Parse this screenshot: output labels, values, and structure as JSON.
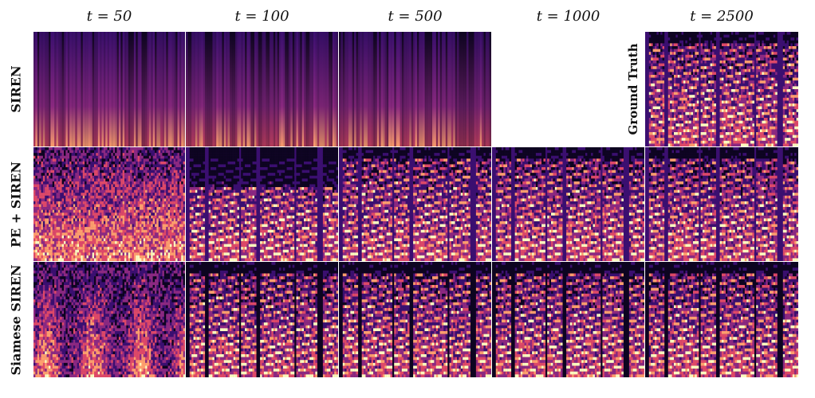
{
  "columns": [
    {
      "label": "t = 50"
    },
    {
      "label": "t = 100"
    },
    {
      "label": "t = 500"
    },
    {
      "label": "t = 1000"
    },
    {
      "label": "t = 2500"
    }
  ],
  "rows": [
    {
      "label": "SIREN"
    },
    {
      "label": "PE + SIREN"
    },
    {
      "label": "Siamese SIREN"
    }
  ],
  "ground_truth_label": "Ground Truth",
  "colors": {
    "low": "#0d0420",
    "mid_low": "#3b0f70",
    "mid": "#8c2981",
    "mid_high": "#de4968",
    "high": "#fe9f6d",
    "peak": "#fcfdbf"
  }
}
